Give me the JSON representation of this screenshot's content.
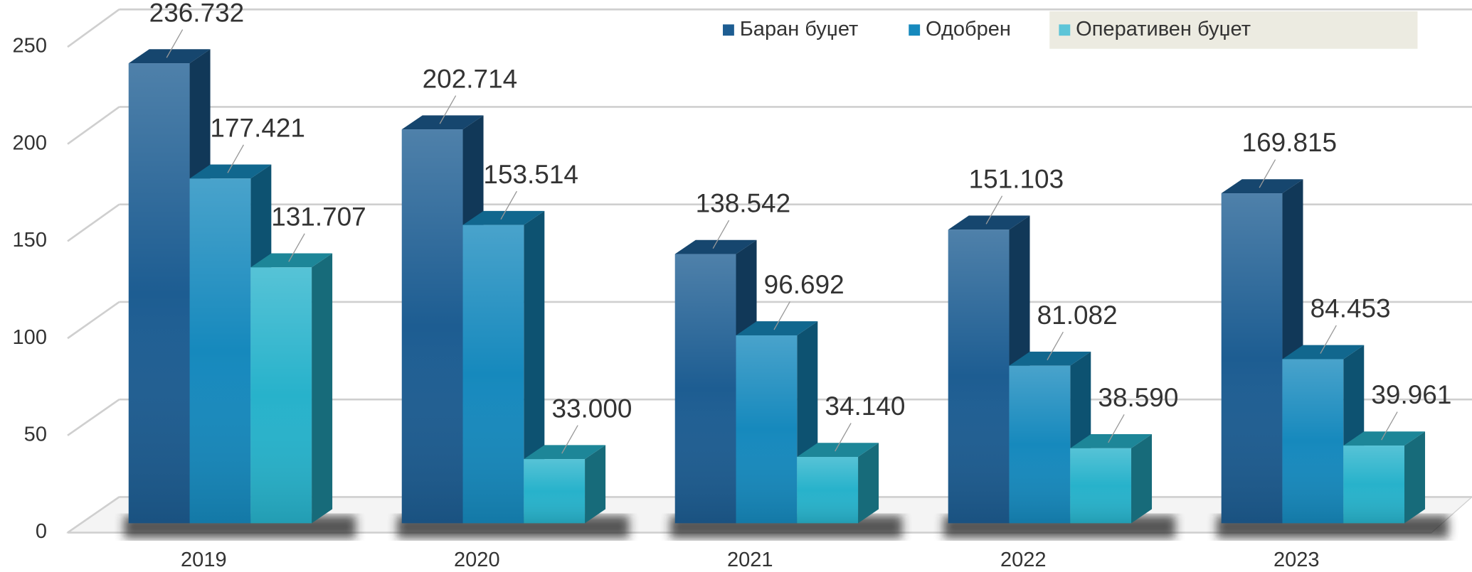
{
  "chart_data": {
    "type": "bar3d",
    "categories": [
      "2019",
      "2020",
      "2021",
      "2022",
      "2023"
    ],
    "series": [
      {
        "name": "Баран буџет",
        "color": "#1d5d92",
        "values": [
          236.732,
          202.714,
          138.542,
          151.103,
          169.815
        ],
        "value_labels": [
          "236.732",
          "202.714",
          "138.542",
          "151.103",
          "169.815"
        ]
      },
      {
        "name": "Одобрен",
        "color": "#1689bd",
        "values": [
          177.421,
          153.514,
          96.692,
          81.082,
          84.453
        ],
        "value_labels": [
          "177.421",
          "153.514",
          "96.692",
          "81.082",
          "84.453"
        ]
      },
      {
        "name": "Оперативен буџет",
        "color": "#27b2cb",
        "values": [
          131.707,
          33.0,
          34.14,
          38.59,
          39.961
        ],
        "value_labels": [
          "131.707",
          "33.000",
          "34.140",
          "38.590",
          "39.961"
        ]
      }
    ],
    "ylim": [
      0,
      250
    ],
    "yticks": [
      0,
      50,
      100,
      150,
      200,
      250
    ],
    "grid": true,
    "legend": "top-right"
  }
}
